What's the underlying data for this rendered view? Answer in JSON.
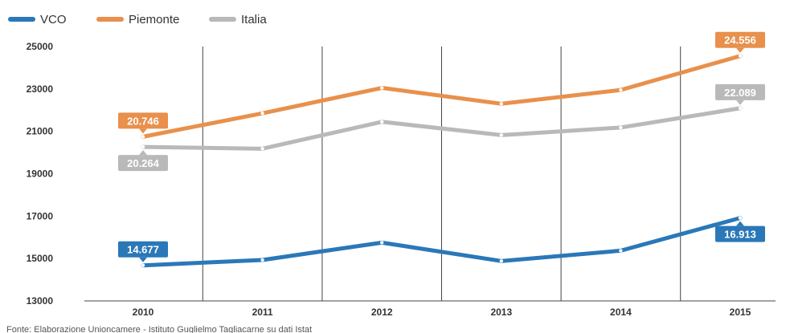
{
  "chart_data": {
    "type": "line",
    "title": "",
    "xlabel": "",
    "ylabel": "",
    "categories": [
      "2010",
      "2011",
      "2012",
      "2013",
      "2014",
      "2015"
    ],
    "ylim": [
      13000,
      25000
    ],
    "yticks": [
      13000,
      15000,
      17000,
      19000,
      21000,
      23000,
      25000
    ],
    "ytick_labels": [
      "13000",
      "15000",
      "17000",
      "19000",
      "21000",
      "23000",
      "25000"
    ],
    "grid": "vertical",
    "legend_position": "top-left",
    "series": [
      {
        "name": "VCO",
        "color": "#2a78b8",
        "values": [
          14677,
          14930,
          15750,
          14880,
          15370,
          16913
        ]
      },
      {
        "name": "Piemonte",
        "color": "#e8904c",
        "values": [
          20746,
          21850,
          23050,
          22300,
          22950,
          24556
        ]
      },
      {
        "name": "Italia",
        "color": "#b9b9b9",
        "values": [
          20264,
          20180,
          21450,
          20820,
          21180,
          22089
        ]
      }
    ],
    "callouts": [
      {
        "series": 1,
        "index": 0,
        "text": "20.746",
        "placement": "above"
      },
      {
        "series": 1,
        "index": 5,
        "text": "24.556",
        "placement": "above"
      },
      {
        "series": 2,
        "index": 0,
        "text": "20.264",
        "placement": "below"
      },
      {
        "series": 2,
        "index": 5,
        "text": "22.089",
        "placement": "above"
      },
      {
        "series": 0,
        "index": 0,
        "text": "14.677",
        "placement": "above"
      },
      {
        "series": 0,
        "index": 5,
        "text": "16.913",
        "placement": "below"
      }
    ],
    "source": "Fonte: Elaborazione Unioncamere - Istituto Guglielmo Tagliacarne su dati Istat"
  }
}
